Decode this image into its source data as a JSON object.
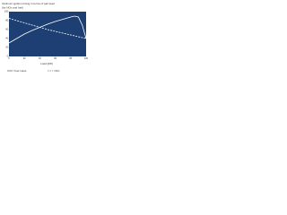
{
  "chart_data": {
    "type": "line",
    "title": "Optimum ignition timing in terms of part load",
    "subtitle": "(for NOx and fuel)",
    "xlabel": "Load (kW)",
    "x": [
      0,
      10,
      20,
      30,
      40,
      50,
      60,
      70,
      80,
      85,
      90,
      95,
      100
    ],
    "xlim": [
      0,
      100
    ],
    "xticks": [
      0,
      20,
      40,
      60,
      80,
      100
    ],
    "ylim": [
      0,
      100
    ],
    "yticks": [
      0,
      20,
      40,
      60,
      80,
      100
    ],
    "background": "#1d3f73",
    "grid": false,
    "series": [
      {
        "name": "Fuel mass",
        "color": "#ffffff",
        "dash": false,
        "values": [
          30,
          40,
          50,
          58,
          65,
          72,
          78,
          83,
          88,
          90,
          88,
          70,
          40
        ]
      },
      {
        "name": "NOx",
        "color": "#ffffff",
        "dash": true,
        "values": [
          85,
          80,
          75,
          70,
          65,
          60,
          56,
          52,
          48,
          46,
          44,
          42,
          40
        ]
      }
    ]
  }
}
